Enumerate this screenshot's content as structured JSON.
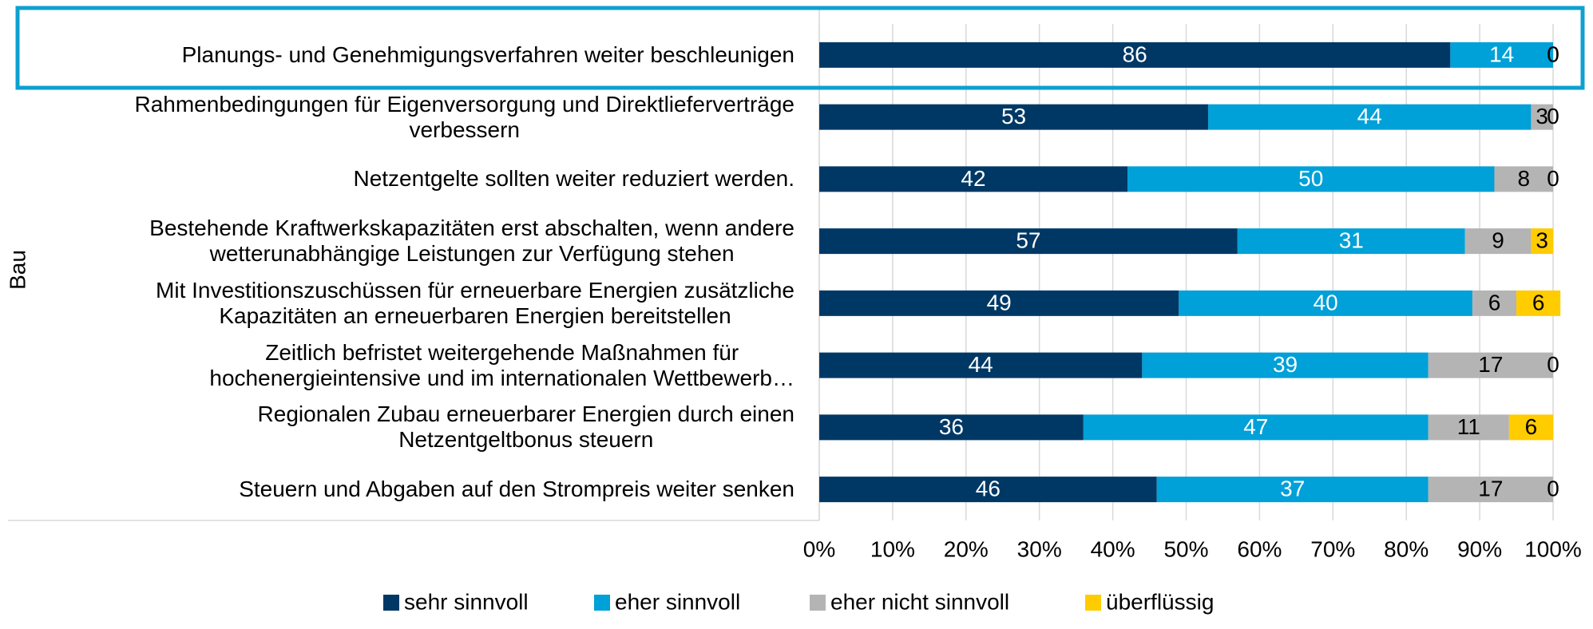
{
  "chart_data": {
    "type": "stacked_barh",
    "ylabel": "Bau",
    "categories": [
      "Planungs- und Genehmigungsverfahren weiter beschleunigen",
      "Rahmenbedingungen für Eigenversorgung und Direktlieferverträge\nverbessern",
      "Netzentgelte sollten weiter reduziert werden.",
      "Bestehende Kraftwerkskapazitäten erst abschalten, wenn andere\nwetterunabhängige Leistungen zur Verfügung stehen",
      "Mit Investitionszuschüssen für erneuerbare Energien zusätzliche\nKapazitäten an erneuerbaren Energien bereitstellen",
      "Zeitlich befristet weitergehende Maßnahmen für\nhochenergieintensive und im internationalen Wettbewerb…",
      "Regionalen Zubau erneuerbarer Energien durch einen\nNetzentgeltbonus steuern",
      "Steuern und Abgaben auf den Strompreis weiter senken"
    ],
    "series": [
      {
        "name": "sehr sinnvoll",
        "color": "#003865",
        "values": [
          86,
          53,
          42,
          57,
          49,
          44,
          36,
          46
        ]
      },
      {
        "name": "eher sinnvoll",
        "color": "#00a0d8",
        "values": [
          14,
          44,
          50,
          31,
          40,
          39,
          47,
          37
        ]
      },
      {
        "name": "eher nicht sinnvoll",
        "color": "#b4b4b4",
        "values": [
          0,
          3,
          8,
          9,
          6,
          17,
          11,
          17
        ]
      },
      {
        "name": "überflüssig",
        "color": "#ffcc00",
        "values": [
          0,
          0,
          0,
          3,
          6,
          0,
          6,
          0
        ]
      }
    ],
    "xlim": [
      0,
      100
    ],
    "xticks": [
      {
        "value": 0,
        "label": "0%"
      },
      {
        "value": 10,
        "label": "10%"
      },
      {
        "value": 20,
        "label": "20%"
      },
      {
        "value": 30,
        "label": "30%"
      },
      {
        "value": 40,
        "label": "40%"
      },
      {
        "value": 50,
        "label": "50%"
      },
      {
        "value": 60,
        "label": "60%"
      },
      {
        "value": 70,
        "label": "70%"
      },
      {
        "value": 80,
        "label": "80%"
      },
      {
        "value": 90,
        "label": "90%"
      },
      {
        "value": 100,
        "label": "100%"
      }
    ],
    "grid": true,
    "legend": "bottom"
  }
}
